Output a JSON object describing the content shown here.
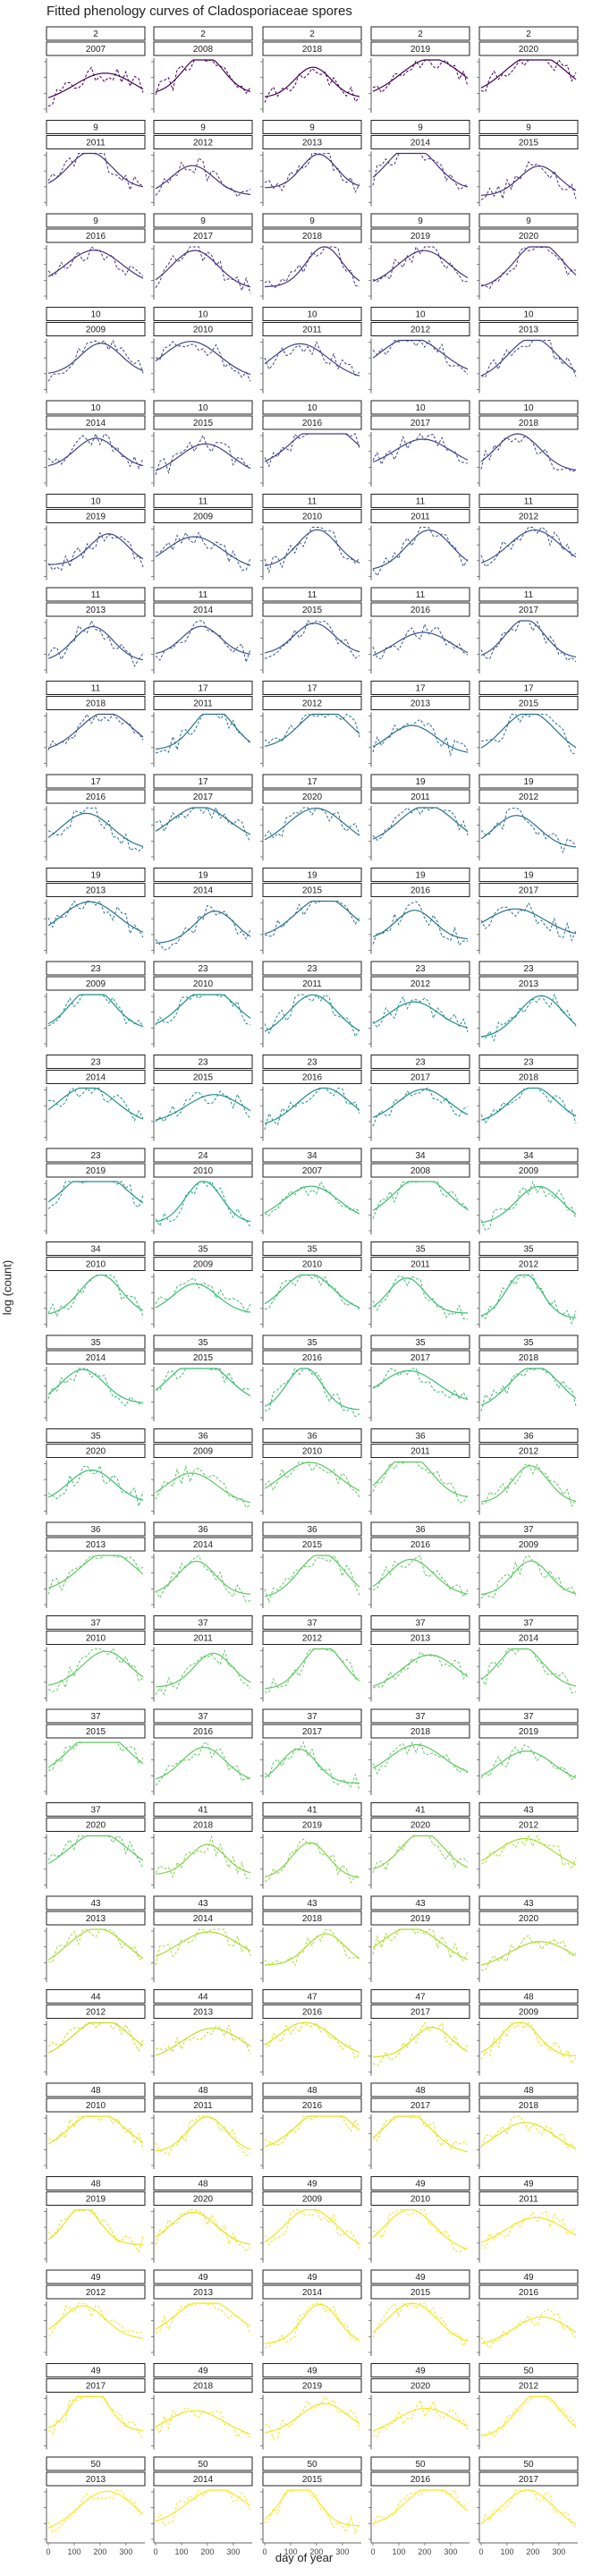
{
  "chart_data": {
    "type": "line",
    "title": "Fitted phenology curves of Cladosporiaceae spores",
    "xlabel": "day of year",
    "ylabel": "log (count)",
    "x_ticks": [
      "0",
      "100",
      "200",
      "300"
    ],
    "xlim": [
      0,
      366
    ],
    "facet_grid": {
      "columns": 5,
      "rows": 27
    },
    "line_styles": {
      "fitted": "solid",
      "observed": "dashed"
    },
    "panels": [
      {
        "site": "2",
        "year": "2007",
        "color": "#440154"
      },
      {
        "site": "2",
        "year": "2008",
        "color": "#440154"
      },
      {
        "site": "2",
        "year": "2018",
        "color": "#440154"
      },
      {
        "site": "2",
        "year": "2019",
        "color": "#440154"
      },
      {
        "site": "2",
        "year": "2020",
        "color": "#440154"
      },
      {
        "site": "9",
        "year": "2011",
        "color": "#46337e"
      },
      {
        "site": "9",
        "year": "2012",
        "color": "#46337e"
      },
      {
        "site": "9",
        "year": "2013",
        "color": "#46337e"
      },
      {
        "site": "9",
        "year": "2014",
        "color": "#46337e"
      },
      {
        "site": "9",
        "year": "2015",
        "color": "#46337e"
      },
      {
        "site": "9",
        "year": "2016",
        "color": "#46337e"
      },
      {
        "site": "9",
        "year": "2017",
        "color": "#46337e"
      },
      {
        "site": "9",
        "year": "2018",
        "color": "#46337e"
      },
      {
        "site": "9",
        "year": "2019",
        "color": "#46337e"
      },
      {
        "site": "9",
        "year": "2020",
        "color": "#46337e"
      },
      {
        "site": "10",
        "year": "2009",
        "color": "#414487"
      },
      {
        "site": "10",
        "year": "2010",
        "color": "#414487"
      },
      {
        "site": "10",
        "year": "2011",
        "color": "#414487"
      },
      {
        "site": "10",
        "year": "2012",
        "color": "#414487"
      },
      {
        "site": "10",
        "year": "2013",
        "color": "#414487"
      },
      {
        "site": "10",
        "year": "2014",
        "color": "#414487"
      },
      {
        "site": "10",
        "year": "2015",
        "color": "#414487"
      },
      {
        "site": "10",
        "year": "2016",
        "color": "#414487"
      },
      {
        "site": "10",
        "year": "2017",
        "color": "#414487"
      },
      {
        "site": "10",
        "year": "2018",
        "color": "#414487"
      },
      {
        "site": "10",
        "year": "2019",
        "color": "#414487"
      },
      {
        "site": "11",
        "year": "2009",
        "color": "#3b528b"
      },
      {
        "site": "11",
        "year": "2010",
        "color": "#3b528b"
      },
      {
        "site": "11",
        "year": "2011",
        "color": "#3b528b"
      },
      {
        "site": "11",
        "year": "2012",
        "color": "#3b528b"
      },
      {
        "site": "11",
        "year": "2013",
        "color": "#3b528b"
      },
      {
        "site": "11",
        "year": "2014",
        "color": "#3b528b"
      },
      {
        "site": "11",
        "year": "2015",
        "color": "#3b528b"
      },
      {
        "site": "11",
        "year": "2016",
        "color": "#3b528b"
      },
      {
        "site": "11",
        "year": "2017",
        "color": "#3b528b"
      },
      {
        "site": "11",
        "year": "2018",
        "color": "#3b528b"
      },
      {
        "site": "17",
        "year": "2011",
        "color": "#2c728e"
      },
      {
        "site": "17",
        "year": "2012",
        "color": "#2c728e"
      },
      {
        "site": "17",
        "year": "2013",
        "color": "#2c728e"
      },
      {
        "site": "17",
        "year": "2015",
        "color": "#2c728e"
      },
      {
        "site": "17",
        "year": "2016",
        "color": "#2c728e"
      },
      {
        "site": "17",
        "year": "2017",
        "color": "#2c728e"
      },
      {
        "site": "17",
        "year": "2020",
        "color": "#2c728e"
      },
      {
        "site": "19",
        "year": "2011",
        "color": "#2c728e"
      },
      {
        "site": "19",
        "year": "2012",
        "color": "#2c728e"
      },
      {
        "site": "19",
        "year": "2013",
        "color": "#2c728e"
      },
      {
        "site": "19",
        "year": "2014",
        "color": "#2c728e"
      },
      {
        "site": "19",
        "year": "2015",
        "color": "#2c728e"
      },
      {
        "site": "19",
        "year": "2016",
        "color": "#2c728e"
      },
      {
        "site": "19",
        "year": "2017",
        "color": "#2c728e"
      },
      {
        "site": "23",
        "year": "2009",
        "color": "#21908c"
      },
      {
        "site": "23",
        "year": "2010",
        "color": "#21908c"
      },
      {
        "site": "23",
        "year": "2011",
        "color": "#21908c"
      },
      {
        "site": "23",
        "year": "2012",
        "color": "#21908c"
      },
      {
        "site": "23",
        "year": "2013",
        "color": "#21908c"
      },
      {
        "site": "23",
        "year": "2014",
        "color": "#21908c"
      },
      {
        "site": "23",
        "year": "2015",
        "color": "#21908c"
      },
      {
        "site": "23",
        "year": "2016",
        "color": "#21908c"
      },
      {
        "site": "23",
        "year": "2017",
        "color": "#21908c"
      },
      {
        "site": "23",
        "year": "2018",
        "color": "#21908c"
      },
      {
        "site": "23",
        "year": "2019",
        "color": "#21908c"
      },
      {
        "site": "24",
        "year": "2010",
        "color": "#27ad81"
      },
      {
        "site": "34",
        "year": "2007",
        "color": "#3dbc74"
      },
      {
        "site": "34",
        "year": "2008",
        "color": "#3dbc74"
      },
      {
        "site": "34",
        "year": "2009",
        "color": "#3dbc74"
      },
      {
        "site": "34",
        "year": "2010",
        "color": "#3dbc74"
      },
      {
        "site": "35",
        "year": "2009",
        "color": "#3dbc74"
      },
      {
        "site": "35",
        "year": "2010",
        "color": "#3dbc74"
      },
      {
        "site": "35",
        "year": "2011",
        "color": "#3dbc74"
      },
      {
        "site": "35",
        "year": "2012",
        "color": "#3dbc74"
      },
      {
        "site": "35",
        "year": "2014",
        "color": "#3dbc74"
      },
      {
        "site": "35",
        "year": "2015",
        "color": "#3dbc74"
      },
      {
        "site": "35",
        "year": "2016",
        "color": "#3dbc74"
      },
      {
        "site": "35",
        "year": "2017",
        "color": "#3dbc74"
      },
      {
        "site": "35",
        "year": "2018",
        "color": "#3dbc74"
      },
      {
        "site": "35",
        "year": "2020",
        "color": "#3dbc74"
      },
      {
        "site": "36",
        "year": "2009",
        "color": "#5ec962"
      },
      {
        "site": "36",
        "year": "2010",
        "color": "#5ec962"
      },
      {
        "site": "36",
        "year": "2011",
        "color": "#5ec962"
      },
      {
        "site": "36",
        "year": "2012",
        "color": "#5ec962"
      },
      {
        "site": "36",
        "year": "2013",
        "color": "#5ec962"
      },
      {
        "site": "36",
        "year": "2014",
        "color": "#5ec962"
      },
      {
        "site": "36",
        "year": "2015",
        "color": "#5ec962"
      },
      {
        "site": "36",
        "year": "2016",
        "color": "#5ec962"
      },
      {
        "site": "37",
        "year": "2009",
        "color": "#5ec962"
      },
      {
        "site": "37",
        "year": "2010",
        "color": "#5ec962"
      },
      {
        "site": "37",
        "year": "2011",
        "color": "#5ec962"
      },
      {
        "site": "37",
        "year": "2012",
        "color": "#5ec962"
      },
      {
        "site": "37",
        "year": "2013",
        "color": "#5ec962"
      },
      {
        "site": "37",
        "year": "2014",
        "color": "#5ec962"
      },
      {
        "site": "37",
        "year": "2015",
        "color": "#5ec962"
      },
      {
        "site": "37",
        "year": "2016",
        "color": "#5ec962"
      },
      {
        "site": "37",
        "year": "2017",
        "color": "#5ec962"
      },
      {
        "site": "37",
        "year": "2018",
        "color": "#5ec962"
      },
      {
        "site": "37",
        "year": "2019",
        "color": "#5ec962"
      },
      {
        "site": "37",
        "year": "2020",
        "color": "#5ec962"
      },
      {
        "site": "41",
        "year": "2018",
        "color": "#84d44b"
      },
      {
        "site": "41",
        "year": "2019",
        "color": "#84d44b"
      },
      {
        "site": "41",
        "year": "2020",
        "color": "#84d44b"
      },
      {
        "site": "43",
        "year": "2012",
        "color": "#aadc32"
      },
      {
        "site": "43",
        "year": "2013",
        "color": "#aadc32"
      },
      {
        "site": "43",
        "year": "2014",
        "color": "#aadc32"
      },
      {
        "site": "43",
        "year": "2018",
        "color": "#aadc32"
      },
      {
        "site": "43",
        "year": "2019",
        "color": "#aadc32"
      },
      {
        "site": "43",
        "year": "2020",
        "color": "#aadc32"
      },
      {
        "site": "44",
        "year": "2012",
        "color": "#c2df23"
      },
      {
        "site": "44",
        "year": "2013",
        "color": "#c2df23"
      },
      {
        "site": "47",
        "year": "2016",
        "color": "#d8e219"
      },
      {
        "site": "47",
        "year": "2017",
        "color": "#d8e219"
      },
      {
        "site": "48",
        "year": "2009",
        "color": "#e5e419"
      },
      {
        "site": "48",
        "year": "2010",
        "color": "#e5e419"
      },
      {
        "site": "48",
        "year": "2011",
        "color": "#e5e419"
      },
      {
        "site": "48",
        "year": "2016",
        "color": "#e5e419"
      },
      {
        "site": "48",
        "year": "2017",
        "color": "#e5e419"
      },
      {
        "site": "48",
        "year": "2018",
        "color": "#e5e419"
      },
      {
        "site": "48",
        "year": "2019",
        "color": "#e5e419"
      },
      {
        "site": "48",
        "year": "2020",
        "color": "#e5e419"
      },
      {
        "site": "49",
        "year": "2009",
        "color": "#f4e61e"
      },
      {
        "site": "49",
        "year": "2010",
        "color": "#f4e61e"
      },
      {
        "site": "49",
        "year": "2011",
        "color": "#f4e61e"
      },
      {
        "site": "49",
        "year": "2012",
        "color": "#f4e61e"
      },
      {
        "site": "49",
        "year": "2013",
        "color": "#f4e61e"
      },
      {
        "site": "49",
        "year": "2014",
        "color": "#f4e61e"
      },
      {
        "site": "49",
        "year": "2015",
        "color": "#f4e61e"
      },
      {
        "site": "49",
        "year": "2016",
        "color": "#f4e61e"
      },
      {
        "site": "49",
        "year": "2017",
        "color": "#f4e61e"
      },
      {
        "site": "49",
        "year": "2018",
        "color": "#f4e61e"
      },
      {
        "site": "49",
        "year": "2019",
        "color": "#f4e61e"
      },
      {
        "site": "49",
        "year": "2020",
        "color": "#f4e61e"
      },
      {
        "site": "50",
        "year": "2012",
        "color": "#fde725"
      },
      {
        "site": "50",
        "year": "2013",
        "color": "#fde725"
      },
      {
        "site": "50",
        "year": "2014",
        "color": "#fde725"
      },
      {
        "site": "50",
        "year": "2015",
        "color": "#fde725"
      },
      {
        "site": "50",
        "year": "2016",
        "color": "#fde725"
      },
      {
        "site": "50",
        "year": "2017",
        "color": "#fde725"
      }
    ]
  }
}
